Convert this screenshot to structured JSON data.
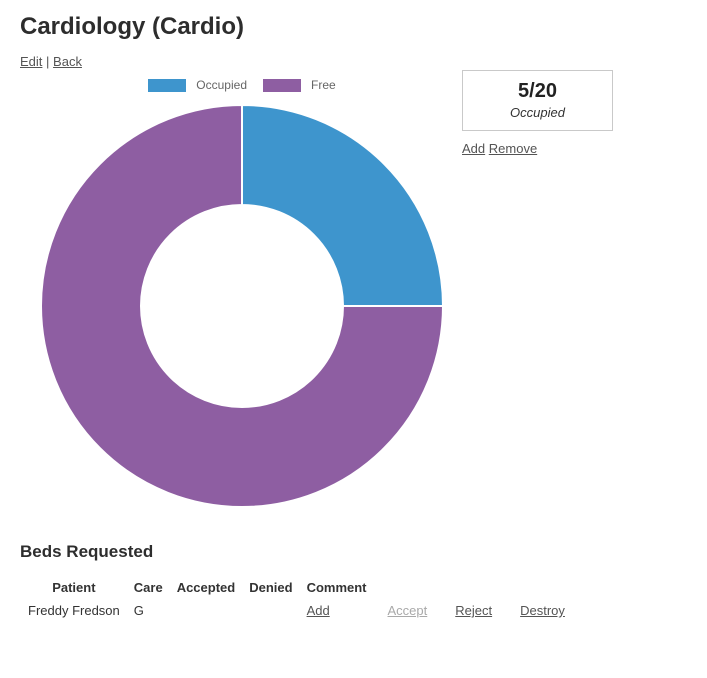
{
  "page": {
    "title": "Cardiology (Cardio)"
  },
  "nav": {
    "edit_label": "Edit",
    "separator": "|",
    "back_label": "Back"
  },
  "chart_data": {
    "type": "pie",
    "subtype": "doughnut",
    "title": "",
    "categories": [
      "Occupied",
      "Free"
    ],
    "values": [
      5,
      15
    ],
    "colors": [
      "#3e95cd",
      "#8e5ea2"
    ],
    "total": 20,
    "legend_position": "top",
    "cutout_percent": 50,
    "start_angle_deg": -90,
    "direction": "clockwise",
    "border_color": "#ffffff",
    "border_width": 2
  },
  "occupancy": {
    "value": "5/20",
    "caption": "Occupied",
    "add_label": "Add",
    "remove_label": "Remove"
  },
  "beds_requested": {
    "heading": "Beds Requested",
    "columns": [
      "Patient",
      "Care",
      "Accepted",
      "Denied",
      "Comment"
    ],
    "rows": [
      {
        "patient": "Freddy Fredson",
        "care": "G",
        "accepted": "",
        "denied": "",
        "comment_add_label": "Add",
        "accept_label": "Accept",
        "reject_label": "Reject",
        "destroy_label": "Destroy"
      }
    ]
  },
  "colors": {
    "occupied": "#3e95cd",
    "free": "#8e5ea2",
    "link": "#545454",
    "link_disabled": "#a9a9a9",
    "box_border": "#c9c9c9",
    "legend_text": "#666666"
  }
}
